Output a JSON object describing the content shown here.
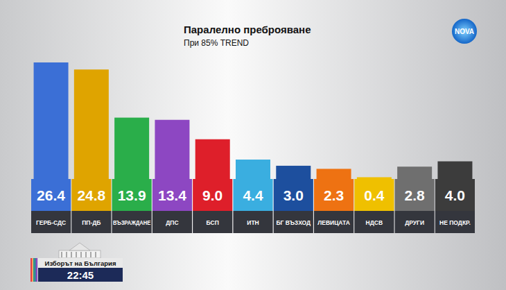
{
  "chart_data": {
    "type": "bar",
    "title": "Паралелно преброяване",
    "subtitle": "При 85% TREND",
    "categories": [
      "ГЕРБ-СДС",
      "ПП-ДБ",
      "ВЪЗРАЖДАНЕ",
      "ДПС",
      "БСП",
      "ИТН",
      "БГ ВЪЗХОД",
      "ЛЕВИЦАТА",
      "НДСВ",
      "ДРУГИ",
      "НЕ ПОДКР."
    ],
    "values": [
      26.4,
      24.8,
      13.9,
      13.4,
      9.0,
      4.4,
      3.0,
      2.3,
      0.4,
      2.8,
      4.0
    ],
    "value_labels": [
      "26.4",
      "24.8",
      "13.9",
      "13.4",
      "9.0",
      "4.4",
      "3.0",
      "2.3",
      "0.4",
      "2.8",
      "4.0"
    ],
    "colors": [
      "#3b6fd6",
      "#dfa400",
      "#2aae4a",
      "#8d47c2",
      "#de1f2a",
      "#3aaee0",
      "#1d4f9e",
      "#ee7212",
      "#efc000",
      "#6f6f6f",
      "#3c3c3c"
    ],
    "data_labels": true,
    "tick_labels": false
  },
  "overlay": {
    "logo": "NOVA",
    "program": "Изборът на България",
    "time": "22:45"
  }
}
